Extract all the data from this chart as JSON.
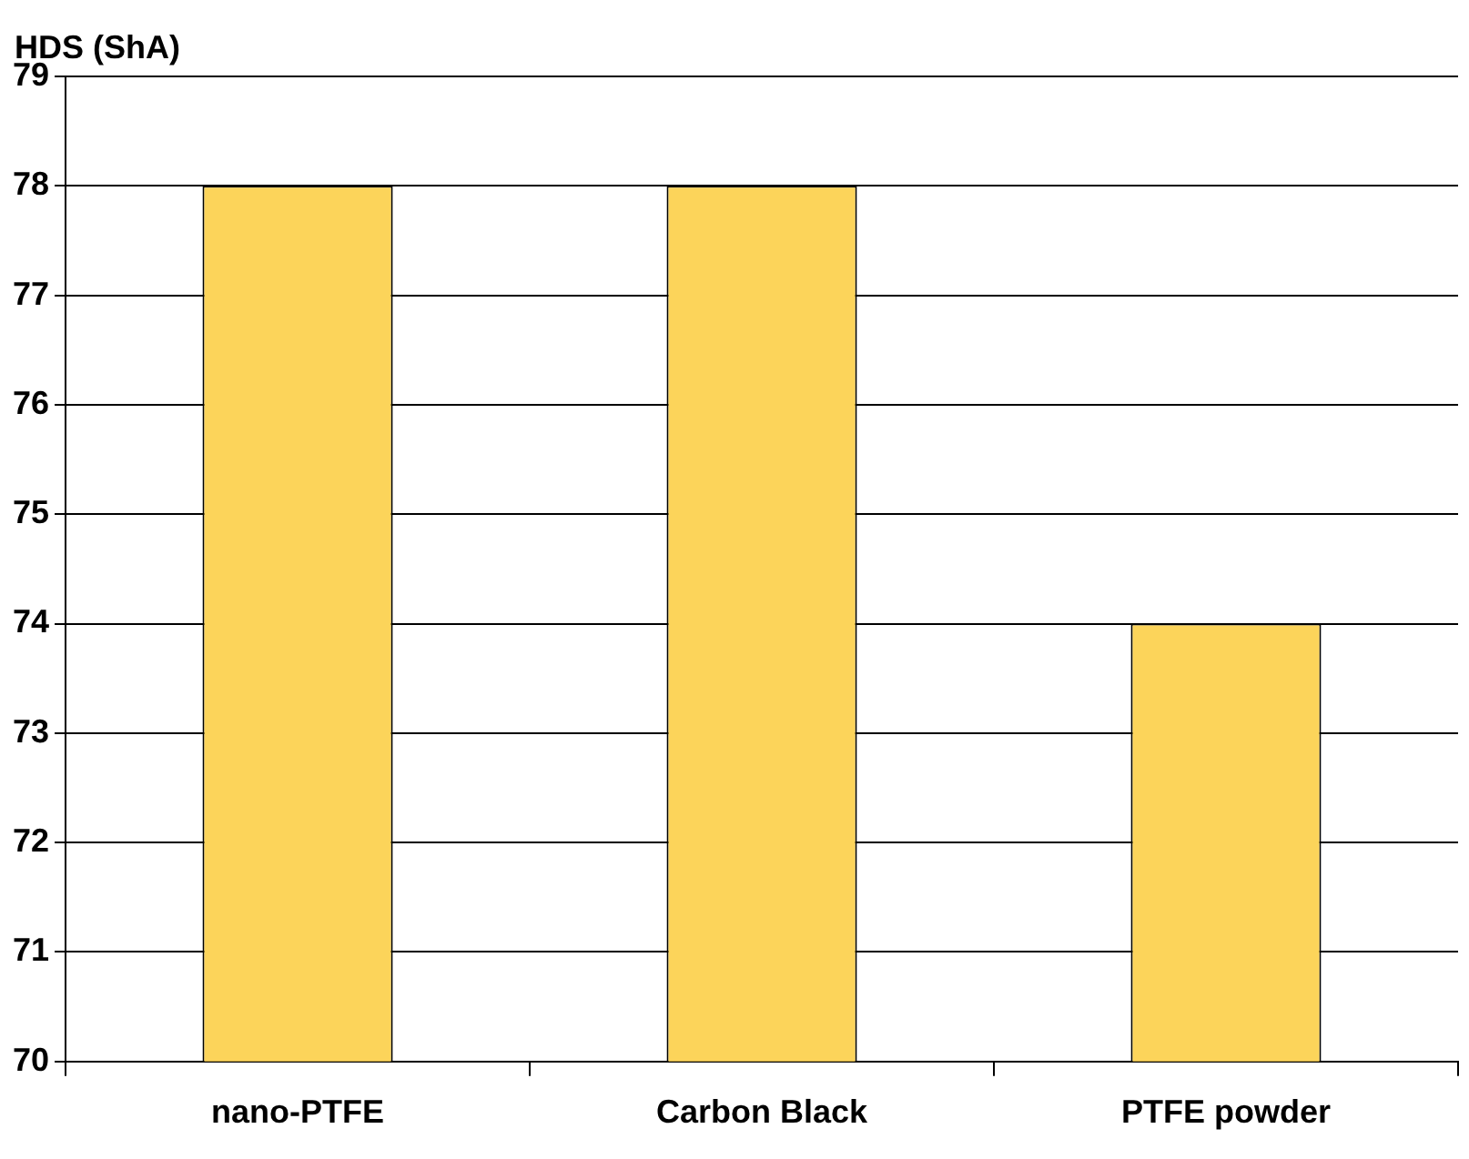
{
  "chart_data": {
    "type": "bar",
    "ylabel": "HDS (ShA)",
    "categories": [
      "nano-PTFE",
      "Carbon Black",
      "PTFE powder"
    ],
    "values": [
      78,
      78,
      74
    ],
    "color": "#fcd45a",
    "ylim": [
      70,
      79
    ],
    "yticks": [
      70,
      71,
      72,
      73,
      74,
      75,
      76,
      77,
      78,
      79
    ],
    "grid": "y",
    "legend": false
  }
}
